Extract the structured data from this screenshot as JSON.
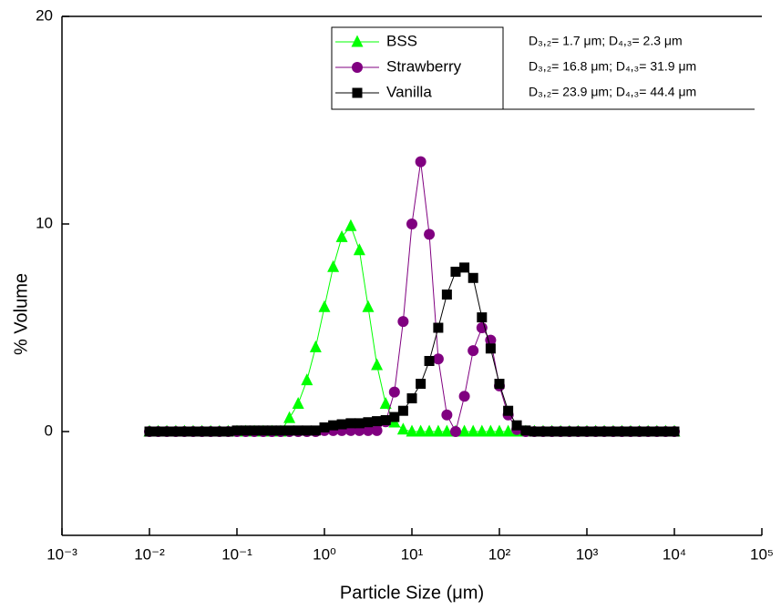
{
  "chart_data": {
    "type": "line",
    "xlabel": "Particle Size (μm)",
    "ylabel": "% Volume",
    "xscale": "log",
    "xlim": [
      0.001,
      100000
    ],
    "xticks": [
      {
        "value": 0.001,
        "label": "10⁻³"
      },
      {
        "value": 0.01,
        "label": "10⁻²"
      },
      {
        "value": 0.1,
        "label": "10⁻¹"
      },
      {
        "value": 1,
        "label": "10⁰"
      },
      {
        "value": 10,
        "label": "10¹"
      },
      {
        "value": 100,
        "label": "10²"
      },
      {
        "value": 1000,
        "label": "10³"
      },
      {
        "value": 10000,
        "label": "10⁴"
      },
      {
        "value": 100000,
        "label": "10⁵"
      }
    ],
    "ylim": [
      -5,
      20
    ],
    "yticks": [
      0,
      10,
      20
    ],
    "x": [
      0.01,
      0.0126,
      0.0158,
      0.02,
      0.0251,
      0.0316,
      0.0398,
      0.0501,
      0.0631,
      0.0794,
      0.1,
      0.126,
      0.158,
      0.2,
      0.251,
      0.316,
      0.398,
      0.501,
      0.631,
      0.794,
      1,
      1.26,
      1.58,
      2,
      2.51,
      3.16,
      3.98,
      5.01,
      6.31,
      7.94,
      10,
      12.6,
      15.8,
      20,
      25.1,
      31.6,
      39.8,
      50.1,
      63.1,
      79.4,
      100,
      126,
      158,
      200,
      251,
      316,
      398,
      501,
      631,
      794,
      1000,
      1260,
      1580,
      2000,
      2510,
      3160,
      3980,
      5010,
      6310,
      7940,
      10000
    ],
    "series": [
      {
        "name": "BSS",
        "color": "#00ff00",
        "marker": "triangle",
        "values": [
          0,
          0,
          0,
          0,
          0,
          0,
          0,
          0,
          0,
          0,
          0,
          0,
          0,
          0,
          0,
          0,
          0.65,
          1.34,
          2.47,
          4.06,
          6.0,
          7.93,
          9.37,
          9.9,
          8.74,
          6.0,
          3.2,
          1.34,
          0.44,
          0.1,
          0,
          0,
          0,
          0,
          0,
          0,
          0,
          0,
          0,
          0,
          0,
          0,
          0,
          0,
          0,
          0,
          0,
          0,
          0,
          0,
          0,
          0,
          0,
          0,
          0,
          0,
          0,
          0,
          0,
          0,
          0
        ]
      },
      {
        "name": "Strawberry",
        "color": "#800080",
        "marker": "circle",
        "values": [
          0,
          0,
          0,
          0,
          0,
          0,
          0,
          0,
          0,
          0,
          0,
          0,
          0,
          0,
          0,
          0,
          0,
          0,
          0,
          0,
          0.05,
          0.05,
          0.05,
          0.05,
          0.05,
          0.05,
          0.05,
          0.47,
          1.9,
          5.3,
          10.0,
          13.0,
          9.5,
          3.5,
          0.8,
          0,
          1.7,
          3.9,
          5.0,
          4.4,
          2.2,
          0.8,
          0.1,
          0,
          0,
          0,
          0,
          0,
          0,
          0,
          0,
          0,
          0,
          0,
          0,
          0,
          0,
          0,
          0,
          0,
          0
        ]
      },
      {
        "name": "Vanilla",
        "color": "#000000",
        "marker": "square",
        "values": [
          0,
          0,
          0,
          0,
          0,
          0,
          0,
          0,
          0,
          0,
          0.05,
          0.05,
          0.05,
          0.05,
          0.05,
          0.05,
          0.05,
          0.05,
          0.05,
          0.05,
          0.2,
          0.3,
          0.35,
          0.4,
          0.4,
          0.45,
          0.5,
          0.55,
          0.7,
          1.0,
          1.6,
          2.3,
          3.4,
          5.0,
          6.6,
          7.7,
          7.9,
          7.4,
          5.5,
          4.0,
          2.3,
          1.0,
          0.3,
          0.05,
          0,
          0,
          0,
          0,
          0,
          0,
          0,
          0,
          0,
          0,
          0,
          0,
          0,
          0,
          0,
          0,
          0
        ]
      }
    ],
    "annotations": [
      "D₃,₂= 1.7 μm;  D₄,₃= 2.3 μm",
      "D₃,₂= 16.8 μm;  D₄,₃= 31.9 μm",
      "D₃,₂= 23.9 μm;  D₄,₃= 44.4 μm"
    ],
    "annotation_color": "#ff0000",
    "legend": "top"
  }
}
